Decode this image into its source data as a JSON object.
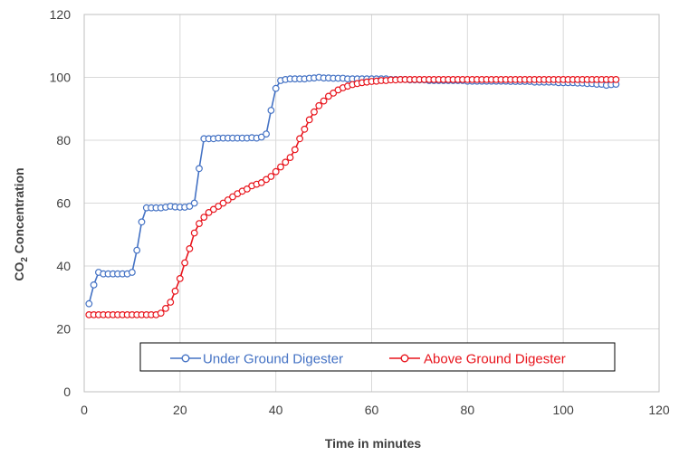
{
  "chart_data": {
    "type": "line",
    "xlabel": "Time in minutes",
    "ylabel_main": "CO",
    "ylabel_sub": "2",
    "ylabel_rest": " Concentration",
    "xlim": [
      0,
      120
    ],
    "ylim": [
      0,
      120
    ],
    "x_ticks": [
      0,
      20,
      40,
      60,
      80,
      100,
      120
    ],
    "y_ticks": [
      0,
      20,
      40,
      60,
      80,
      100,
      120
    ],
    "grid": true,
    "legend_position": "bottom-center",
    "series": [
      {
        "name": "Under Ground Digester",
        "color": "#4472C4",
        "x": [
          1,
          2,
          3,
          4,
          5,
          6,
          7,
          8,
          9,
          10,
          11,
          12,
          13,
          14,
          15,
          16,
          17,
          18,
          19,
          20,
          21,
          22,
          23,
          24,
          25,
          26,
          27,
          28,
          29,
          30,
          31,
          32,
          33,
          34,
          35,
          36,
          37,
          38,
          39,
          40,
          41,
          42,
          43,
          44,
          45,
          46,
          47,
          48,
          49,
          50,
          51,
          52,
          53,
          54,
          55,
          56,
          57,
          58,
          59,
          60,
          61,
          62,
          63,
          64,
          65,
          66,
          67,
          68,
          69,
          70,
          71,
          72,
          73,
          74,
          75,
          76,
          77,
          78,
          79,
          80,
          81,
          82,
          83,
          84,
          85,
          86,
          87,
          88,
          89,
          90,
          91,
          92,
          93,
          94,
          95,
          96,
          97,
          98,
          99,
          100,
          101,
          102,
          103,
          104,
          105,
          106,
          107,
          108,
          109,
          110,
          111
        ],
        "y": [
          28,
          34,
          38,
          37.5,
          37.5,
          37.5,
          37.5,
          37.5,
          37.5,
          38,
          45,
          54,
          58.5,
          58.5,
          58.5,
          58.5,
          58.7,
          59,
          58.8,
          58.7,
          58.7,
          59,
          60,
          71,
          80.5,
          80.5,
          80.5,
          80.7,
          80.7,
          80.7,
          80.7,
          80.7,
          80.7,
          80.7,
          80.8,
          80.7,
          81,
          82,
          89.5,
          96.5,
          99,
          99.3,
          99.5,
          99.5,
          99.5,
          99.5,
          99.7,
          99.8,
          100,
          99.8,
          99.8,
          99.7,
          99.7,
          99.7,
          99.5,
          99.5,
          99.5,
          99.5,
          99.5,
          99.5,
          99.5,
          99.5,
          99.5,
          99.3,
          99.3,
          99.3,
          99.3,
          99.2,
          99.2,
          99.2,
          99.2,
          99.0,
          99.0,
          99.0,
          99.0,
          99.0,
          99.0,
          99.0,
          99.0,
          98.8,
          98.8,
          98.8,
          98.8,
          98.8,
          98.8,
          98.8,
          98.8,
          98.8,
          98.7,
          98.7,
          98.7,
          98.7,
          98.7,
          98.5,
          98.5,
          98.5,
          98.5,
          98.5,
          98.3,
          98.3,
          98.3,
          98.3,
          98.2,
          98.2,
          98.0,
          98.0,
          97.8,
          97.8,
          97.5,
          97.7,
          97.8
        ]
      },
      {
        "name": "Above Ground Digester",
        "color": "#E8141C",
        "x": [
          1,
          2,
          3,
          4,
          5,
          6,
          7,
          8,
          9,
          10,
          11,
          12,
          13,
          14,
          15,
          16,
          17,
          18,
          19,
          20,
          21,
          22,
          23,
          24,
          25,
          26,
          27,
          28,
          29,
          30,
          31,
          32,
          33,
          34,
          35,
          36,
          37,
          38,
          39,
          40,
          41,
          42,
          43,
          44,
          45,
          46,
          47,
          48,
          49,
          50,
          51,
          52,
          53,
          54,
          55,
          56,
          57,
          58,
          59,
          60,
          61,
          62,
          63,
          64,
          65,
          66,
          67,
          68,
          69,
          70,
          71,
          72,
          73,
          74,
          75,
          76,
          77,
          78,
          79,
          80,
          81,
          82,
          83,
          84,
          85,
          86,
          87,
          88,
          89,
          90,
          91,
          92,
          93,
          94,
          95,
          96,
          97,
          98,
          99,
          100,
          101,
          102,
          103,
          104,
          105,
          106,
          107,
          108,
          109,
          110,
          111
        ],
        "y": [
          24.5,
          24.5,
          24.5,
          24.5,
          24.5,
          24.5,
          24.5,
          24.5,
          24.5,
          24.5,
          24.5,
          24.5,
          24.5,
          24.5,
          24.5,
          25,
          26.5,
          28.5,
          32,
          36,
          41,
          45.5,
          50.5,
          53.5,
          55.5,
          57,
          58,
          59,
          60,
          61,
          62,
          63,
          63.8,
          64.5,
          65.5,
          66,
          66.5,
          67.5,
          68.5,
          70,
          71.5,
          73,
          74.5,
          77,
          80.5,
          83.5,
          86.5,
          89,
          91,
          92.5,
          94,
          95,
          96,
          96.7,
          97.2,
          97.7,
          98,
          98.3,
          98.5,
          98.7,
          98.8,
          99,
          99,
          99.2,
          99.2,
          99.3,
          99.3,
          99.3,
          99.3,
          99.3,
          99.3,
          99.3,
          99.3,
          99.3,
          99.3,
          99.3,
          99.3,
          99.3,
          99.3,
          99.3,
          99.3,
          99.3,
          99.3,
          99.3,
          99.3,
          99.3,
          99.3,
          99.3,
          99.3,
          99.3,
          99.3,
          99.3,
          99.3,
          99.3,
          99.3,
          99.3,
          99.3,
          99.3,
          99.3,
          99.3,
          99.3,
          99.3,
          99.3,
          99.3,
          99.3,
          99.3,
          99.3,
          99.3,
          99.3,
          99.3,
          99.3
        ]
      }
    ]
  },
  "legend": {
    "item_0": "Under Ground Digester",
    "item_1": "Above Ground Digester"
  },
  "colors": {
    "grid": "#d9d9d9",
    "frame": "#bfbfbf",
    "text": "#404040"
  }
}
